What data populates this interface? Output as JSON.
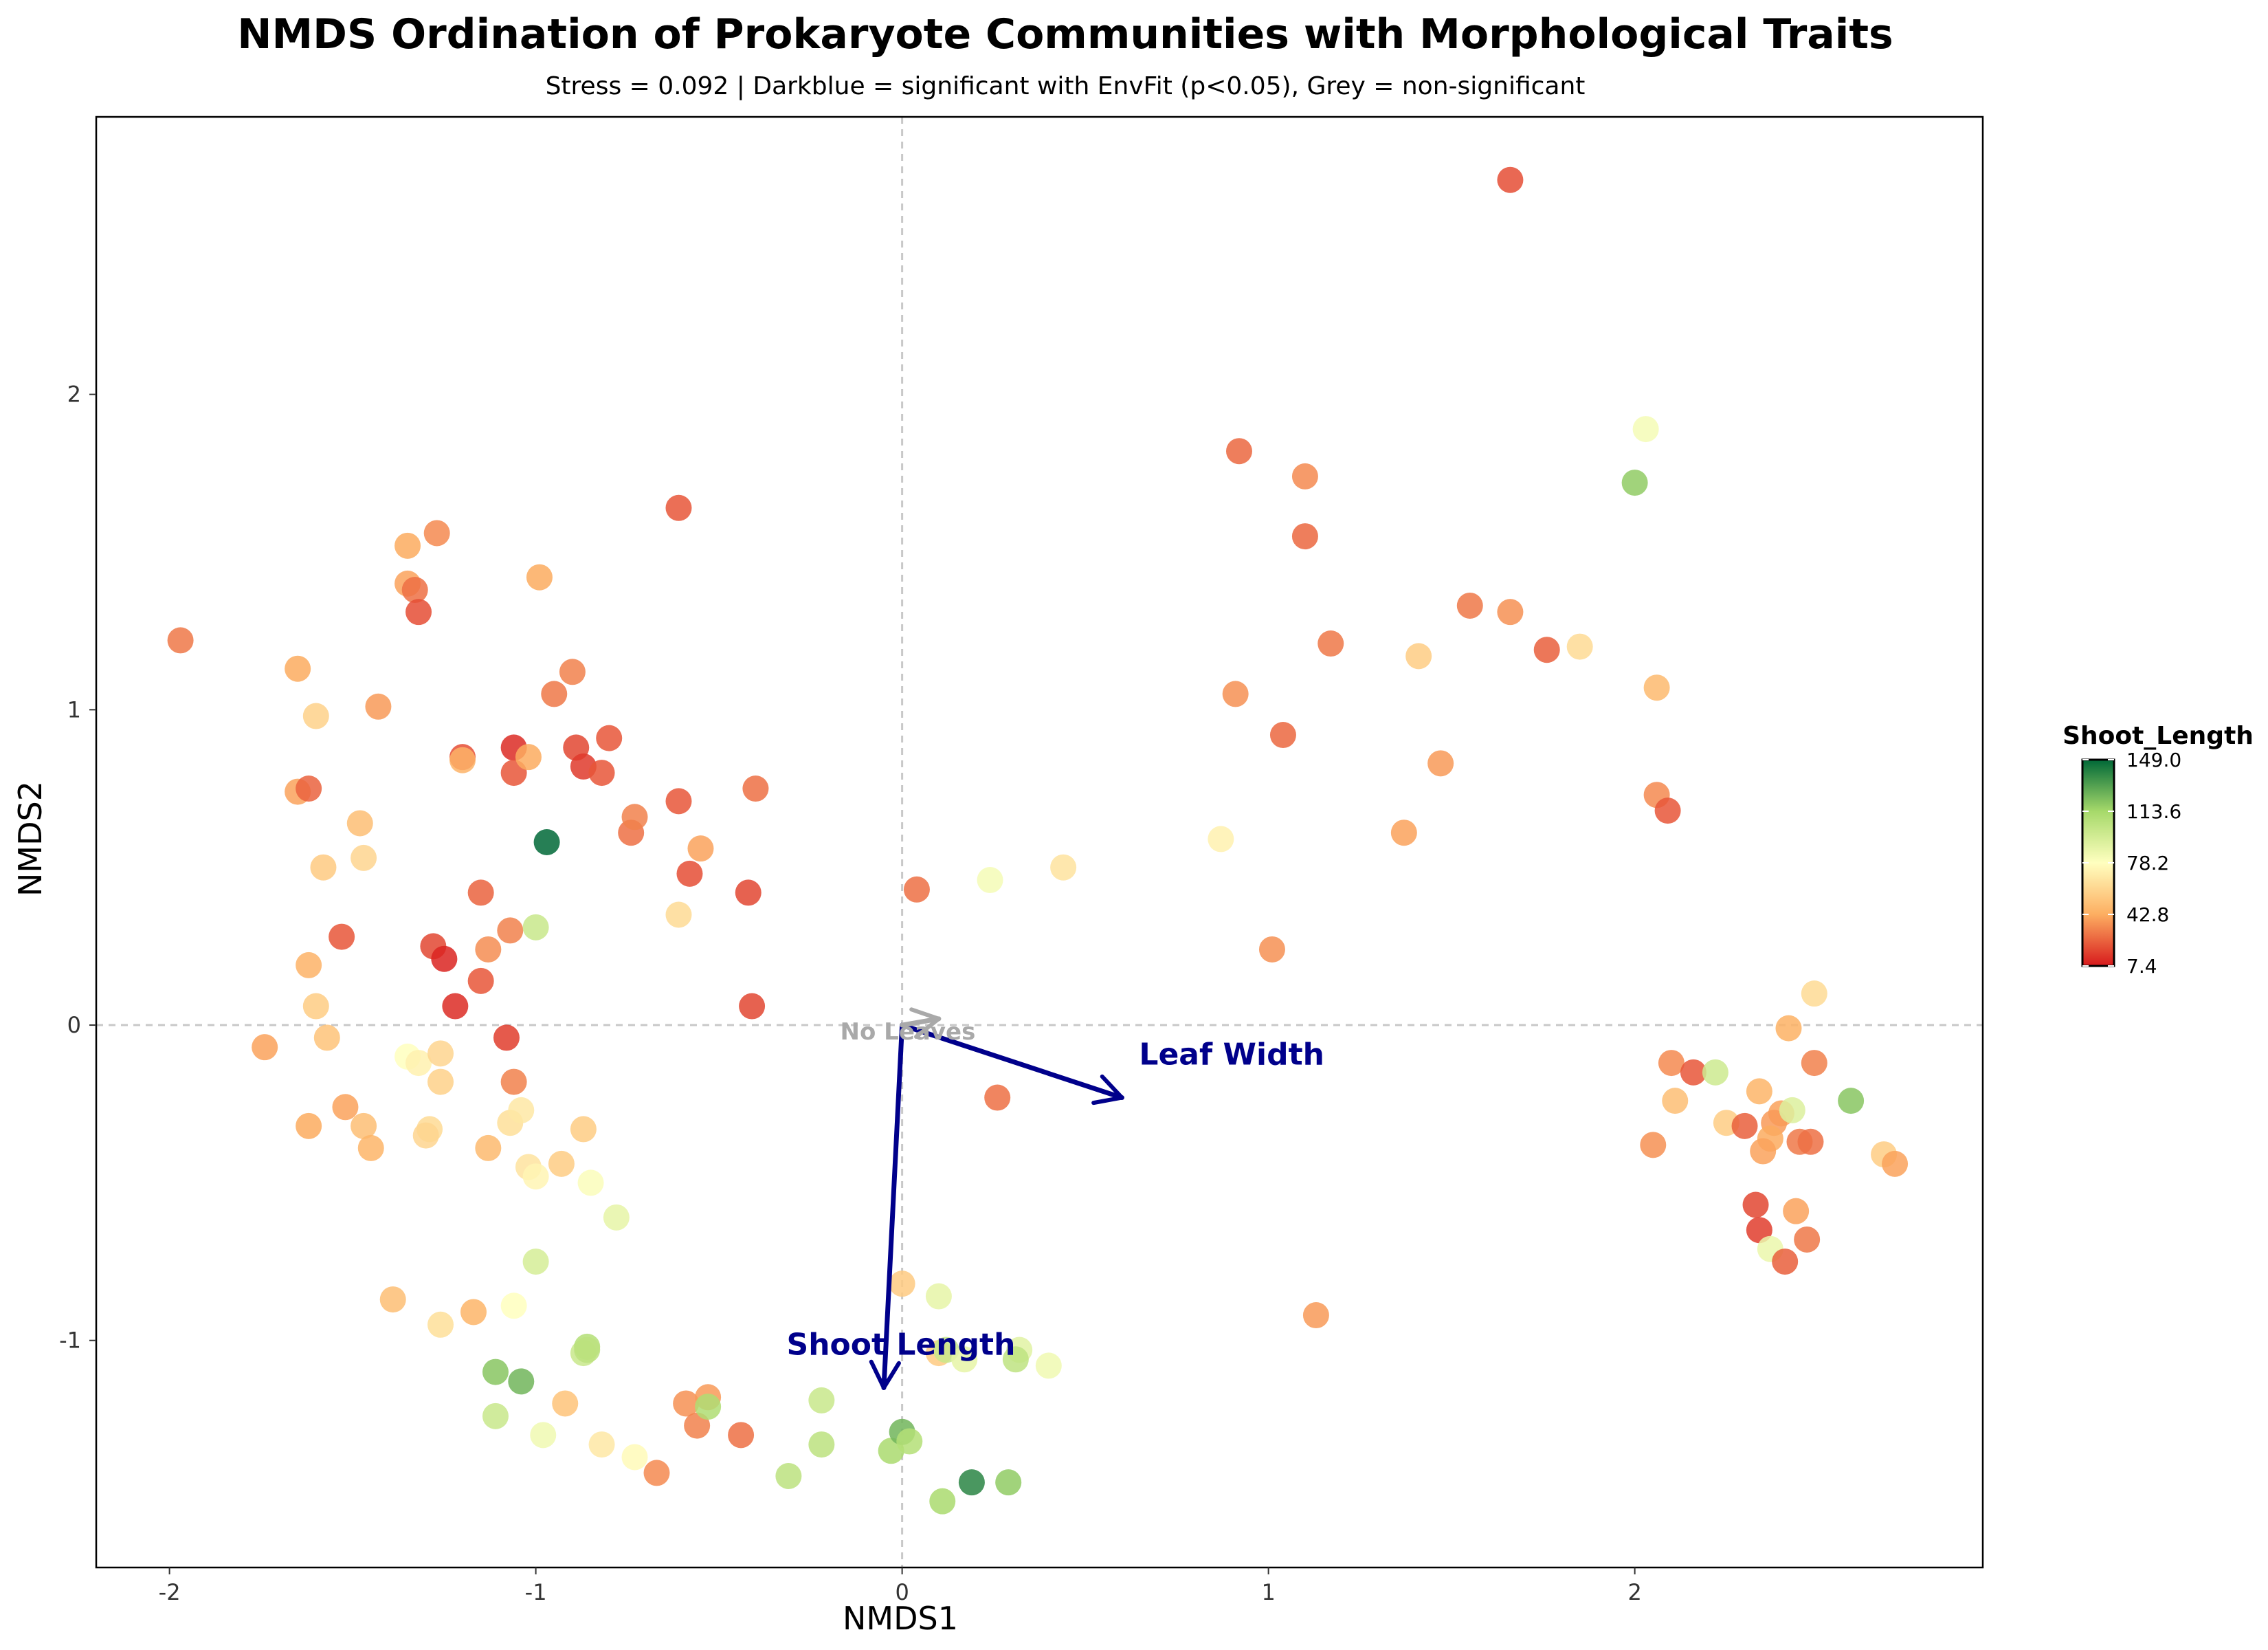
{
  "chart_data": {
    "type": "scatter",
    "title": "NMDS Ordination of Prokaryote Communities with Morphological Traits",
    "subtitle": "Stress = 0.092 | Darkblue = significant with EnvFit (p<0.05), Grey = non-significant",
    "xlabel": "NMDS1",
    "ylabel": "NMDS2",
    "xlim": [
      -2.2,
      2.95
    ],
    "ylim": [
      -1.72,
      2.88
    ],
    "xticks": [
      -2,
      -1,
      0,
      1,
      2
    ],
    "xtick_labels": [
      "-2",
      "-1",
      "0",
      "1",
      "2"
    ],
    "yticks": [
      -1,
      0,
      1,
      2
    ],
    "ytick_labels": [
      "-1",
      "0",
      "1",
      "2"
    ],
    "grid": false,
    "reference_lines": {
      "x": 0,
      "y": 0,
      "style": "dashed"
    },
    "colorbar": {
      "title": "Shoot_Length",
      "min": 7.4,
      "max": 149.0,
      "ticks": [
        7.4,
        42.8,
        78.2,
        113.6,
        149.0
      ],
      "tick_labels": [
        "7.4",
        "42.8",
        "78.2",
        "113.6",
        "149.0"
      ],
      "colormap": "RdYlGn",
      "placement": "right"
    },
    "colors": {
      "significant": "#00008b",
      "nonsignificant": "#a9a9a9"
    },
    "vectors": [
      {
        "label": "Leaf Width",
        "x": 0.6,
        "y": -0.23,
        "significant": true
      },
      {
        "label": "Shoot Length",
        "x": -0.05,
        "y": -1.15,
        "significant": true
      },
      {
        "label": "No Leaves",
        "x": 0.1,
        "y": 0.02,
        "significant": false
      }
    ],
    "points": [
      {
        "x": -1.97,
        "y": 1.22,
        "v": 30
      },
      {
        "x": -1.65,
        "y": 1.13,
        "v": 42
      },
      {
        "x": -1.6,
        "y": 0.98,
        "v": 58
      },
      {
        "x": -1.65,
        "y": 0.74,
        "v": 40
      },
      {
        "x": -1.62,
        "y": 0.75,
        "v": 25
      },
      {
        "x": -1.48,
        "y": 0.64,
        "v": 50
      },
      {
        "x": -1.58,
        "y": 0.5,
        "v": 55
      },
      {
        "x": -1.47,
        "y": 0.53,
        "v": 60
      },
      {
        "x": -1.53,
        "y": 0.28,
        "v": 22
      },
      {
        "x": -1.62,
        "y": 0.19,
        "v": 45
      },
      {
        "x": -1.6,
        "y": 0.06,
        "v": 56
      },
      {
        "x": -1.57,
        "y": -0.04,
        "v": 52
      },
      {
        "x": -1.74,
        "y": -0.07,
        "v": 40
      },
      {
        "x": -1.62,
        "y": -0.32,
        "v": 42
      },
      {
        "x": -1.52,
        "y": -0.26,
        "v": 40
      },
      {
        "x": -1.47,
        "y": -0.32,
        "v": 50
      },
      {
        "x": -1.45,
        "y": -0.39,
        "v": 46
      },
      {
        "x": -1.43,
        "y": 1.01,
        "v": 38
      },
      {
        "x": -1.35,
        "y": 1.52,
        "v": 42
      },
      {
        "x": -1.35,
        "y": 1.4,
        "v": 40
      },
      {
        "x": -1.33,
        "y": 1.38,
        "v": 28
      },
      {
        "x": -1.32,
        "y": 1.31,
        "v": 20
      },
      {
        "x": -1.27,
        "y": 1.56,
        "v": 34
      },
      {
        "x": -1.2,
        "y": 0.85,
        "v": 20
      },
      {
        "x": -1.2,
        "y": 0.84,
        "v": 45
      },
      {
        "x": -1.06,
        "y": 0.88,
        "v": 12
      },
      {
        "x": -1.06,
        "y": 0.8,
        "v": 22
      },
      {
        "x": -1.02,
        "y": 0.85,
        "v": 42
      },
      {
        "x": -0.99,
        "y": 1.42,
        "v": 42
      },
      {
        "x": -0.95,
        "y": 1.05,
        "v": 30
      },
      {
        "x": -0.9,
        "y": 1.12,
        "v": 32
      },
      {
        "x": -0.89,
        "y": 0.88,
        "v": 18
      },
      {
        "x": -0.87,
        "y": 0.82,
        "v": 15
      },
      {
        "x": -0.82,
        "y": 0.8,
        "v": 22
      },
      {
        "x": -0.8,
        "y": 0.91,
        "v": 22
      },
      {
        "x": -0.97,
        "y": 0.58,
        "v": 149
      },
      {
        "x": -0.74,
        "y": 0.61,
        "v": 28
      },
      {
        "x": -0.73,
        "y": 0.66,
        "v": 32
      },
      {
        "x": -1.15,
        "y": 0.42,
        "v": 25
      },
      {
        "x": -1.07,
        "y": 0.3,
        "v": 32
      },
      {
        "x": -1.13,
        "y": 0.24,
        "v": 35
      },
      {
        "x": -1.0,
        "y": 0.31,
        "v": 100
      },
      {
        "x": -1.28,
        "y": 0.25,
        "v": 18
      },
      {
        "x": -1.25,
        "y": 0.21,
        "v": 10
      },
      {
        "x": -1.22,
        "y": 0.06,
        "v": 12
      },
      {
        "x": -1.15,
        "y": 0.14,
        "v": 22
      },
      {
        "x": -1.08,
        "y": -0.04,
        "v": 16
      },
      {
        "x": -1.06,
        "y": -0.18,
        "v": 32
      },
      {
        "x": -1.35,
        "y": -0.1,
        "v": 78
      },
      {
        "x": -1.32,
        "y": -0.12,
        "v": 72
      },
      {
        "x": -1.26,
        "y": -0.09,
        "v": 60
      },
      {
        "x": -1.26,
        "y": -0.18,
        "v": 58
      },
      {
        "x": -1.29,
        "y": -0.33,
        "v": 62
      },
      {
        "x": -1.3,
        "y": -0.35,
        "v": 60
      },
      {
        "x": -1.13,
        "y": -0.39,
        "v": 48
      },
      {
        "x": -1.07,
        "y": -0.31,
        "v": 64
      },
      {
        "x": -1.04,
        "y": -0.27,
        "v": 68
      },
      {
        "x": -1.02,
        "y": -0.45,
        "v": 66
      },
      {
        "x": -1.0,
        "y": -0.48,
        "v": 74
      },
      {
        "x": -0.93,
        "y": -0.44,
        "v": 56
      },
      {
        "x": -0.87,
        "y": -0.33,
        "v": 56
      },
      {
        "x": -0.85,
        "y": -0.5,
        "v": 80
      },
      {
        "x": -0.78,
        "y": -0.61,
        "v": 88
      },
      {
        "x": -1.0,
        "y": -0.75,
        "v": 95
      },
      {
        "x": -1.39,
        "y": -0.87,
        "v": 50
      },
      {
        "x": -1.26,
        "y": -0.95,
        "v": 64
      },
      {
        "x": -1.17,
        "y": -0.91,
        "v": 46
      },
      {
        "x": -1.06,
        "y": -0.89,
        "v": 78
      },
      {
        "x": -1.11,
        "y": -1.1,
        "v": 120
      },
      {
        "x": -1.04,
        "y": -1.13,
        "v": 125
      },
      {
        "x": -0.87,
        "y": -1.04,
        "v": 100
      },
      {
        "x": -0.86,
        "y": -1.02,
        "v": 108
      },
      {
        "x": -0.86,
        "y": -1.03,
        "v": 105
      },
      {
        "x": -0.92,
        "y": -1.2,
        "v": 52
      },
      {
        "x": -1.11,
        "y": -1.24,
        "v": 100
      },
      {
        "x": -0.98,
        "y": -1.3,
        "v": 84
      },
      {
        "x": -0.82,
        "y": -1.33,
        "v": 68
      },
      {
        "x": -0.73,
        "y": -1.37,
        "v": 76
      },
      {
        "x": -0.67,
        "y": -1.42,
        "v": 34
      },
      {
        "x": -0.59,
        "y": -1.2,
        "v": 36
      },
      {
        "x": -0.53,
        "y": -1.18,
        "v": 38
      },
      {
        "x": -0.56,
        "y": -1.27,
        "v": 32
      },
      {
        "x": -0.53,
        "y": -1.21,
        "v": 110
      },
      {
        "x": -0.44,
        "y": -1.3,
        "v": 28
      },
      {
        "x": -0.31,
        "y": -1.43,
        "v": 105
      },
      {
        "x": -0.22,
        "y": -1.19,
        "v": 100
      },
      {
        "x": -0.22,
        "y": -1.33,
        "v": 105
      },
      {
        "x": -0.03,
        "y": -1.35,
        "v": 112
      },
      {
        "x": 0.0,
        "y": -1.29,
        "v": 125
      },
      {
        "x": 0.02,
        "y": -1.32,
        "v": 108
      },
      {
        "x": 0.11,
        "y": -1.51,
        "v": 112
      },
      {
        "x": 0.19,
        "y": -1.45,
        "v": 140
      },
      {
        "x": 0.29,
        "y": -1.45,
        "v": 118
      },
      {
        "x": 0.0,
        "y": -0.82,
        "v": 55
      },
      {
        "x": 0.1,
        "y": -0.86,
        "v": 88
      },
      {
        "x": 0.1,
        "y": -1.04,
        "v": 55
      },
      {
        "x": 0.12,
        "y": -1.03,
        "v": 100
      },
      {
        "x": 0.17,
        "y": -1.06,
        "v": 88
      },
      {
        "x": 0.32,
        "y": -1.03,
        "v": 90
      },
      {
        "x": 0.31,
        "y": -1.06,
        "v": 104
      },
      {
        "x": 0.4,
        "y": -1.08,
        "v": 84
      },
      {
        "x": -0.61,
        "y": 1.64,
        "v": 22
      },
      {
        "x": -0.61,
        "y": 0.71,
        "v": 22
      },
      {
        "x": -0.58,
        "y": 0.48,
        "v": 20
      },
      {
        "x": -0.55,
        "y": 0.56,
        "v": 40
      },
      {
        "x": -0.61,
        "y": 0.35,
        "v": 62
      },
      {
        "x": -0.4,
        "y": 0.75,
        "v": 28
      },
      {
        "x": -0.42,
        "y": 0.42,
        "v": 18
      },
      {
        "x": -0.41,
        "y": 0.06,
        "v": 18
      },
      {
        "x": 0.04,
        "y": 0.43,
        "v": 28
      },
      {
        "x": 0.24,
        "y": 0.46,
        "v": 82
      },
      {
        "x": 0.44,
        "y": 0.5,
        "v": 66
      },
      {
        "x": 0.26,
        "y": -0.23,
        "v": 28
      },
      {
        "x": 0.87,
        "y": 0.59,
        "v": 72
      },
      {
        "x": 1.01,
        "y": 0.24,
        "v": 36
      },
      {
        "x": 0.92,
        "y": 1.82,
        "v": 26
      },
      {
        "x": 1.1,
        "y": 1.74,
        "v": 34
      },
      {
        "x": 1.1,
        "y": 1.55,
        "v": 26
      },
      {
        "x": 1.17,
        "y": 1.21,
        "v": 30
      },
      {
        "x": 0.91,
        "y": 1.05,
        "v": 36
      },
      {
        "x": 1.04,
        "y": 0.92,
        "v": 26
      },
      {
        "x": 1.66,
        "y": 2.68,
        "v": 20
      },
      {
        "x": 1.55,
        "y": 1.33,
        "v": 30
      },
      {
        "x": 1.66,
        "y": 1.31,
        "v": 36
      },
      {
        "x": 1.76,
        "y": 1.19,
        "v": 24
      },
      {
        "x": 1.85,
        "y": 1.2,
        "v": 62
      },
      {
        "x": 1.41,
        "y": 1.17,
        "v": 56
      },
      {
        "x": 1.47,
        "y": 0.83,
        "v": 38
      },
      {
        "x": 1.37,
        "y": 0.61,
        "v": 40
      },
      {
        "x": 2.06,
        "y": 1.07,
        "v": 48
      },
      {
        "x": 2.06,
        "y": 0.73,
        "v": 34
      },
      {
        "x": 2.09,
        "y": 0.68,
        "v": 22
      },
      {
        "x": 2.0,
        "y": 1.72,
        "v": 118
      },
      {
        "x": 2.03,
        "y": 1.89,
        "v": 82
      },
      {
        "x": 1.13,
        "y": -0.92,
        "v": 38
      },
      {
        "x": 2.49,
        "y": 0.1,
        "v": 62
      },
      {
        "x": 2.42,
        "y": -0.01,
        "v": 44
      },
      {
        "x": 2.1,
        "y": -0.12,
        "v": 34
      },
      {
        "x": 2.16,
        "y": -0.15,
        "v": 22
      },
      {
        "x": 2.22,
        "y": -0.15,
        "v": 98
      },
      {
        "x": 2.11,
        "y": -0.24,
        "v": 50
      },
      {
        "x": 2.05,
        "y": -0.38,
        "v": 36
      },
      {
        "x": 2.25,
        "y": -0.31,
        "v": 56
      },
      {
        "x": 2.3,
        "y": -0.32,
        "v": 24
      },
      {
        "x": 2.34,
        "y": -0.21,
        "v": 46
      },
      {
        "x": 2.4,
        "y": -0.28,
        "v": 40
      },
      {
        "x": 2.38,
        "y": -0.31,
        "v": 38
      },
      {
        "x": 2.37,
        "y": -0.36,
        "v": 42
      },
      {
        "x": 2.35,
        "y": -0.4,
        "v": 40
      },
      {
        "x": 2.43,
        "y": -0.27,
        "v": 92
      },
      {
        "x": 2.45,
        "y": -0.37,
        "v": 30
      },
      {
        "x": 2.48,
        "y": -0.37,
        "v": 28
      },
      {
        "x": 2.49,
        "y": -0.12,
        "v": 32
      },
      {
        "x": 2.59,
        "y": -0.24,
        "v": 120
      },
      {
        "x": 2.33,
        "y": -0.57,
        "v": 18
      },
      {
        "x": 2.34,
        "y": -0.65,
        "v": 16
      },
      {
        "x": 2.37,
        "y": -0.71,
        "v": 86
      },
      {
        "x": 2.41,
        "y": -0.75,
        "v": 24
      },
      {
        "x": 2.44,
        "y": -0.59,
        "v": 40
      },
      {
        "x": 2.47,
        "y": -0.68,
        "v": 30
      },
      {
        "x": 2.68,
        "y": -0.41,
        "v": 56
      },
      {
        "x": 2.71,
        "y": -0.44,
        "v": 40
      }
    ]
  }
}
